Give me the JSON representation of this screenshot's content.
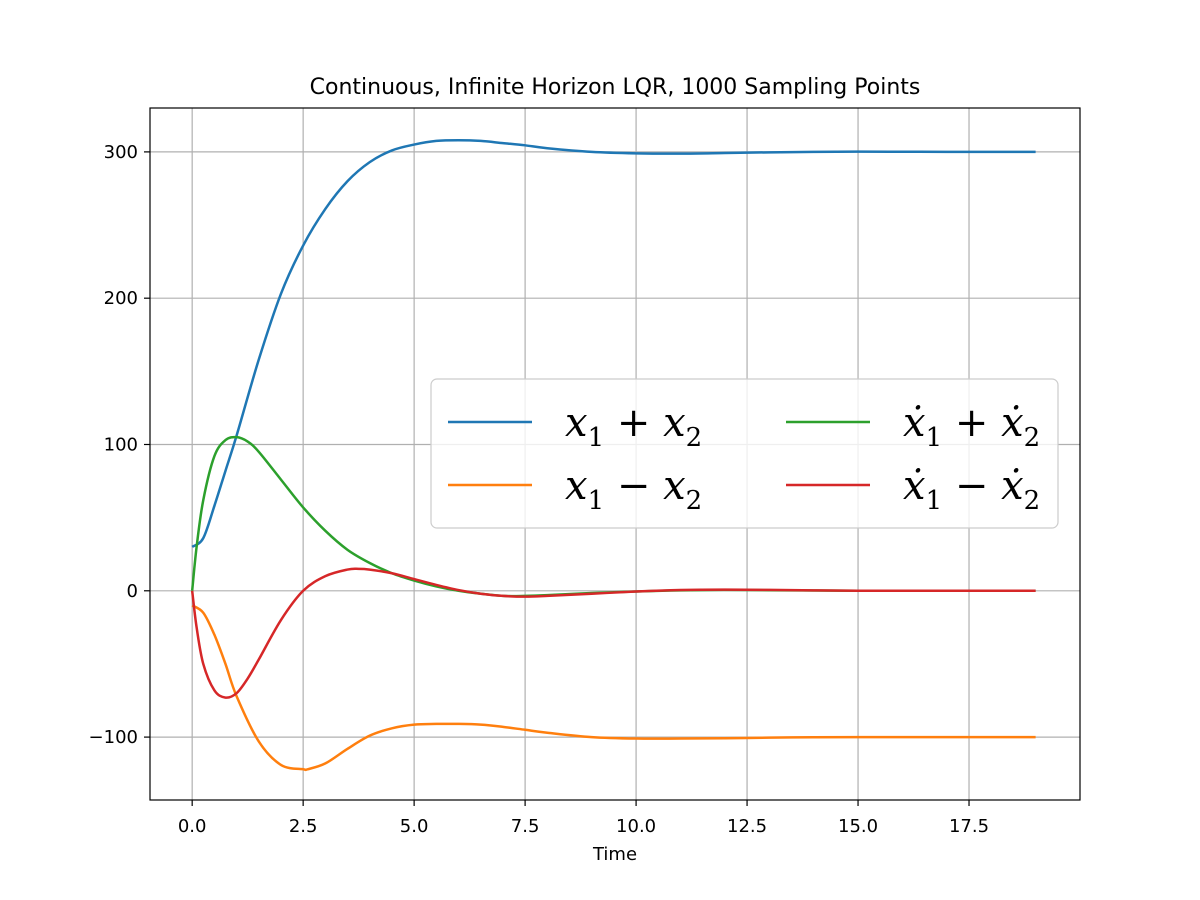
{
  "chart_data": {
    "type": "line",
    "title": "Continuous, Infinite Horizon LQR, 1000 Sampling Points",
    "xlabel": "Time",
    "ylabel": "",
    "xlim": [
      -0.95,
      20.0
    ],
    "ylim": [
      -143,
      330
    ],
    "grid": true,
    "legend_position": "center-right",
    "legend_columns": 2,
    "xticks": [
      0.0,
      2.5,
      5.0,
      7.5,
      10.0,
      12.5,
      15.0,
      17.5
    ],
    "xtick_labels": [
      "0.0",
      "2.5",
      "5.0",
      "7.5",
      "10.0",
      "12.5",
      "15.0",
      "17.5"
    ],
    "yticks": [
      -100,
      0,
      100,
      200,
      300
    ],
    "ytick_labels": [
      "−100",
      "0",
      "100",
      "200",
      "300"
    ],
    "series": [
      {
        "name": "x1 + x2",
        "legend": {
          "a": "x",
          "a_sub": "1",
          "op": "+",
          "b": "x",
          "b_sub": "2",
          "dot": false
        },
        "color": "#1f77b4",
        "x": [
          0,
          0.25,
          0.5,
          0.75,
          1.0,
          1.5,
          2.0,
          2.5,
          3.0,
          3.5,
          4.0,
          4.5,
          5.0,
          5.5,
          6.0,
          6.5,
          7.0,
          7.5,
          8.0,
          9.0,
          10.0,
          11.0,
          12.0,
          13.0,
          14.0,
          15.0,
          16.0,
          17.0,
          18.0,
          19.0
        ],
        "y": [
          30,
          36,
          58,
          82,
          106,
          158,
          203,
          236,
          261,
          280,
          293,
          301,
          305,
          307.5,
          308,
          307.5,
          306,
          304.5,
          302.5,
          300,
          299,
          298.8,
          299.2,
          299.7,
          300,
          300.2,
          300.1,
          300,
          300,
          300
        ]
      },
      {
        "name": "x1 − x2",
        "legend": {
          "a": "x",
          "a_sub": "1",
          "op": "−",
          "b": "x",
          "b_sub": "2",
          "dot": false
        },
        "color": "#ff7f0e",
        "x": [
          0,
          0.25,
          0.5,
          0.75,
          1.0,
          1.5,
          2.0,
          2.5,
          2.6,
          3.0,
          3.5,
          4.0,
          4.5,
          5.0,
          5.5,
          6.0,
          6.5,
          7.0,
          7.5,
          8.0,
          9.0,
          10.0,
          11.0,
          12.0,
          13.0,
          14.0,
          15.0,
          16.0,
          17.0,
          18.0,
          19.0
        ],
        "y": [
          -10,
          -15,
          -30,
          -50,
          -72,
          -103,
          -119,
          -122,
          -122,
          -118,
          -108,
          -99,
          -94,
          -91.5,
          -91,
          -91,
          -91.5,
          -93,
          -95,
          -97,
          -100,
          -101,
          -101,
          -100.8,
          -100.4,
          -100.1,
          -100,
          -100,
          -100,
          -100,
          -100
        ]
      },
      {
        "name": "ẋ1 + ẋ2",
        "legend": {
          "a": "x",
          "a_sub": "1",
          "op": "+",
          "b": "x",
          "b_sub": "2",
          "dot": true
        },
        "color": "#2ca02c",
        "x": [
          0,
          0.1,
          0.25,
          0.5,
          0.75,
          1.0,
          1.25,
          1.5,
          2.0,
          2.5,
          3.0,
          3.5,
          4.0,
          4.5,
          5.0,
          5.5,
          6.0,
          6.5,
          7.0,
          7.5,
          8.0,
          9.0,
          10.0,
          11.0,
          12.0,
          13.0,
          14.0,
          15.0,
          16.0,
          17.0,
          18.0,
          19.0
        ],
        "y": [
          0,
          30,
          62,
          92,
          103,
          105,
          102,
          95,
          76,
          57,
          41,
          28,
          19,
          12,
          7,
          3,
          0,
          -2,
          -3.5,
          -3.5,
          -3,
          -1.5,
          -0.5,
          0.3,
          0.6,
          0.4,
          0.2,
          0,
          0,
          0,
          0,
          0
        ]
      },
      {
        "name": "ẋ1 − ẋ2",
        "legend": {
          "a": "x",
          "a_sub": "1",
          "op": "−",
          "b": "x",
          "b_sub": "2",
          "dot": true
        },
        "color": "#d62728",
        "x": [
          0,
          0.1,
          0.25,
          0.5,
          0.75,
          1.0,
          1.25,
          1.5,
          2.0,
          2.5,
          3.0,
          3.5,
          3.75,
          4.0,
          4.5,
          5.0,
          5.5,
          6.0,
          6.5,
          7.0,
          7.5,
          8.0,
          9.0,
          10.0,
          11.0,
          12.0,
          13.0,
          14.0,
          15.0,
          16.0,
          17.0,
          18.0,
          19.0
        ],
        "y": [
          0,
          -25,
          -50,
          -68,
          -73,
          -70,
          -60,
          -47,
          -20,
          0,
          10,
          14.5,
          15,
          14.5,
          12,
          8,
          4,
          0.5,
          -2,
          -3.5,
          -4,
          -3.5,
          -2,
          -0.5,
          0.5,
          0.8,
          0.6,
          0.3,
          0,
          0,
          0,
          0,
          0
        ]
      }
    ]
  }
}
